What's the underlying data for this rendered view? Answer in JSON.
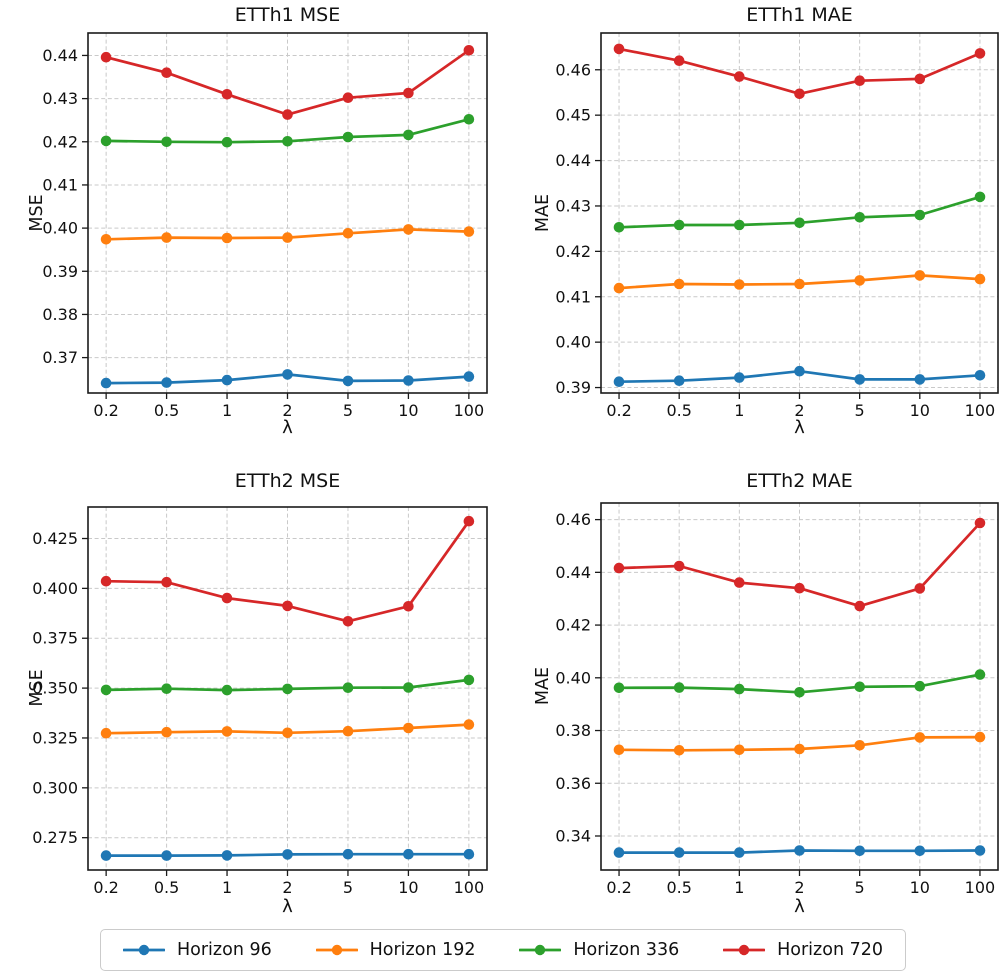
{
  "page": {
    "background": "#ffffff"
  },
  "legend": {
    "items": [
      {
        "label": "Horizon 96",
        "color": "#1f77b4"
      },
      {
        "label": "Horizon 192",
        "color": "#ff7f0e"
      },
      {
        "label": "Horizon 336",
        "color": "#2ca02c"
      },
      {
        "label": "Horizon 720",
        "color": "#d62728"
      }
    ]
  },
  "chart_data": [
    {
      "type": "line",
      "title": "ETTh1 MSE",
      "xlabel": "λ",
      "ylabel": "MSE",
      "categories": [
        "0.2",
        "0.5",
        "1",
        "2",
        "5",
        "10",
        "100"
      ],
      "ylim": [
        0.3618,
        0.4452
      ],
      "yticks": [
        0.37,
        0.38,
        0.39,
        0.4,
        0.41,
        0.42,
        0.43,
        0.44
      ],
      "ytick_labels": [
        "0.37",
        "0.38",
        "0.39",
        "0.40",
        "0.41",
        "0.42",
        "0.43",
        "0.44"
      ],
      "grid": {
        "style": "dashed",
        "color": "#c9c9c9"
      },
      "legend_position": "bottom-shared",
      "series": [
        {
          "name": "Horizon 96",
          "color": "#1f77b4",
          "values": [
            0.3641,
            0.3642,
            0.3648,
            0.3661,
            0.3646,
            0.3647,
            0.3656
          ]
        },
        {
          "name": "Horizon 192",
          "color": "#ff7f0e",
          "values": [
            0.3974,
            0.3978,
            0.3977,
            0.3978,
            0.3988,
            0.3997,
            0.3992
          ]
        },
        {
          "name": "Horizon 336",
          "color": "#2ca02c",
          "values": [
            0.4202,
            0.42,
            0.4199,
            0.4201,
            0.4211,
            0.4216,
            0.4252
          ]
        },
        {
          "name": "Horizon 720",
          "color": "#d62728",
          "values": [
            0.4396,
            0.436,
            0.431,
            0.4263,
            0.4302,
            0.4313,
            0.4412
          ]
        }
      ]
    },
    {
      "type": "line",
      "title": "ETTh1 MAE",
      "xlabel": "λ",
      "ylabel": "MAE",
      "categories": [
        "0.2",
        "0.5",
        "1",
        "2",
        "5",
        "10",
        "100"
      ],
      "ylim": [
        0.3888,
        0.4681
      ],
      "yticks": [
        0.39,
        0.4,
        0.41,
        0.42,
        0.43,
        0.44,
        0.45,
        0.46
      ],
      "ytick_labels": [
        "0.39",
        "0.40",
        "0.41",
        "0.42",
        "0.43",
        "0.44",
        "0.45",
        "0.46"
      ],
      "grid": {
        "style": "dashed",
        "color": "#c9c9c9"
      },
      "legend_position": "bottom-shared",
      "series": [
        {
          "name": "Horizon 96",
          "color": "#1f77b4",
          "values": [
            0.3913,
            0.3915,
            0.3922,
            0.3936,
            0.3918,
            0.3918,
            0.3927
          ]
        },
        {
          "name": "Horizon 192",
          "color": "#ff7f0e",
          "values": [
            0.4119,
            0.4128,
            0.4127,
            0.4128,
            0.4136,
            0.4147,
            0.4139
          ]
        },
        {
          "name": "Horizon 336",
          "color": "#2ca02c",
          "values": [
            0.4253,
            0.4258,
            0.4258,
            0.4263,
            0.4275,
            0.428,
            0.432
          ]
        },
        {
          "name": "Horizon 720",
          "color": "#d62728",
          "values": [
            0.4646,
            0.462,
            0.4585,
            0.4547,
            0.4576,
            0.458,
            0.4636
          ]
        }
      ]
    },
    {
      "type": "line",
      "title": "ETTh2 MSE",
      "xlabel": "λ",
      "ylabel": "MSE",
      "categories": [
        "0.2",
        "0.5",
        "1",
        "2",
        "5",
        "10",
        "100"
      ],
      "ylim": [
        0.2588,
        0.4408
      ],
      "yticks": [
        0.275,
        0.3,
        0.325,
        0.35,
        0.375,
        0.4,
        0.425
      ],
      "ytick_labels": [
        "0.275",
        "0.300",
        "0.325",
        "0.350",
        "0.375",
        "0.400",
        "0.425"
      ],
      "grid": {
        "style": "dashed",
        "color": "#c9c9c9"
      },
      "legend_position": "bottom-shared",
      "series": [
        {
          "name": "Horizon 96",
          "color": "#1f77b4",
          "values": [
            0.266,
            0.266,
            0.2661,
            0.2666,
            0.2667,
            0.2667,
            0.2667
          ]
        },
        {
          "name": "Horizon 192",
          "color": "#ff7f0e",
          "values": [
            0.3274,
            0.3279,
            0.3283,
            0.3276,
            0.3284,
            0.33,
            0.3317
          ]
        },
        {
          "name": "Horizon 336",
          "color": "#2ca02c",
          "values": [
            0.3491,
            0.3497,
            0.349,
            0.3496,
            0.3502,
            0.3503,
            0.3541
          ]
        },
        {
          "name": "Horizon 720",
          "color": "#d62728",
          "values": [
            0.4036,
            0.4031,
            0.3951,
            0.3912,
            0.3835,
            0.391,
            0.4337
          ]
        }
      ]
    },
    {
      "type": "line",
      "title": "ETTh2 MAE",
      "xlabel": "λ",
      "ylabel": "MAE",
      "categories": [
        "0.2",
        "0.5",
        "1",
        "2",
        "5",
        "10",
        "100"
      ],
      "ylim": [
        0.3271,
        0.4663
      ],
      "yticks": [
        0.34,
        0.36,
        0.38,
        0.4,
        0.42,
        0.44,
        0.46
      ],
      "ytick_labels": [
        "0.34",
        "0.36",
        "0.38",
        "0.40",
        "0.42",
        "0.44",
        "0.46"
      ],
      "grid": {
        "style": "dashed",
        "color": "#c9c9c9"
      },
      "legend_position": "bottom-shared",
      "series": [
        {
          "name": "Horizon 96",
          "color": "#1f77b4",
          "values": [
            0.3337,
            0.3337,
            0.3337,
            0.3345,
            0.3344,
            0.3344,
            0.3345
          ]
        },
        {
          "name": "Horizon 192",
          "color": "#ff7f0e",
          "values": [
            0.3727,
            0.3725,
            0.3727,
            0.373,
            0.3744,
            0.3774,
            0.3775
          ]
        },
        {
          "name": "Horizon 336",
          "color": "#2ca02c",
          "values": [
            0.3962,
            0.3963,
            0.3957,
            0.3945,
            0.3966,
            0.3968,
            0.4012
          ]
        },
        {
          "name": "Horizon 720",
          "color": "#d62728",
          "values": [
            0.4416,
            0.4424,
            0.4361,
            0.434,
            0.4272,
            0.4339,
            0.4587
          ]
        }
      ]
    }
  ]
}
